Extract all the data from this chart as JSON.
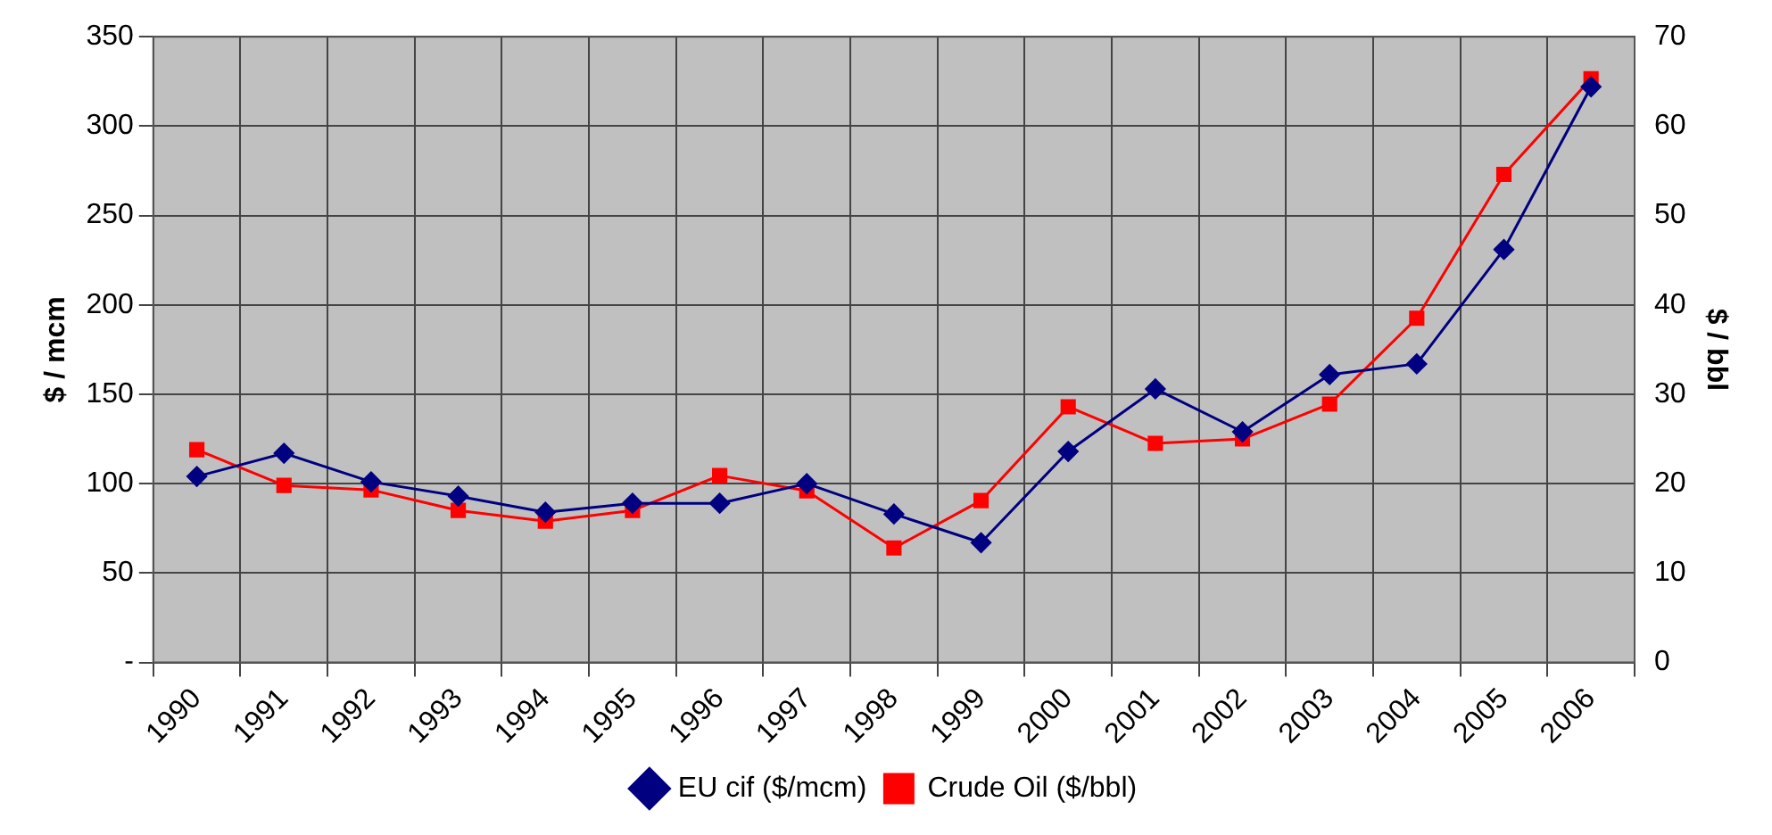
{
  "chart_data": {
    "type": "line",
    "categories": [
      "1990",
      "1991",
      "1992",
      "1993",
      "1994",
      "1995",
      "1996",
      "1997",
      "1998",
      "1999",
      "2000",
      "2001",
      "2002",
      "2003",
      "2004",
      "2005",
      "2006"
    ],
    "series": [
      {
        "name": "EU cif ($/mcm)",
        "color": "#000080",
        "marker": "diamond",
        "values": [
          104,
          117,
          101,
          93,
          84,
          89,
          89,
          100,
          83,
          67,
          118,
          153,
          129,
          161,
          167,
          231,
          322
        ]
      },
      {
        "name": "Crude Oil ($/bbl)",
        "color": "#ff0000",
        "marker": "square",
        "axis": "y2",
        "values": [
          23.8,
          19.8,
          19.3,
          17.0,
          15.8,
          17.0,
          20.9,
          19.2,
          12.8,
          18.1,
          28.6,
          24.5,
          25.0,
          28.9,
          38.5,
          54.6,
          65.3
        ]
      }
    ],
    "ylabel": "$ / mcm",
    "y2label": "$ / bbl",
    "ylim": [
      0,
      350
    ],
    "yticks": [
      {
        "value": 0,
        "label": "-"
      },
      50,
      100,
      150,
      200,
      250,
      300,
      350
    ],
    "y2lim": [
      0,
      70
    ],
    "y2ticks": [
      0,
      10,
      20,
      30,
      40,
      50,
      60,
      70
    ],
    "grid": true,
    "legend": "bottom",
    "line_style": "solid"
  }
}
